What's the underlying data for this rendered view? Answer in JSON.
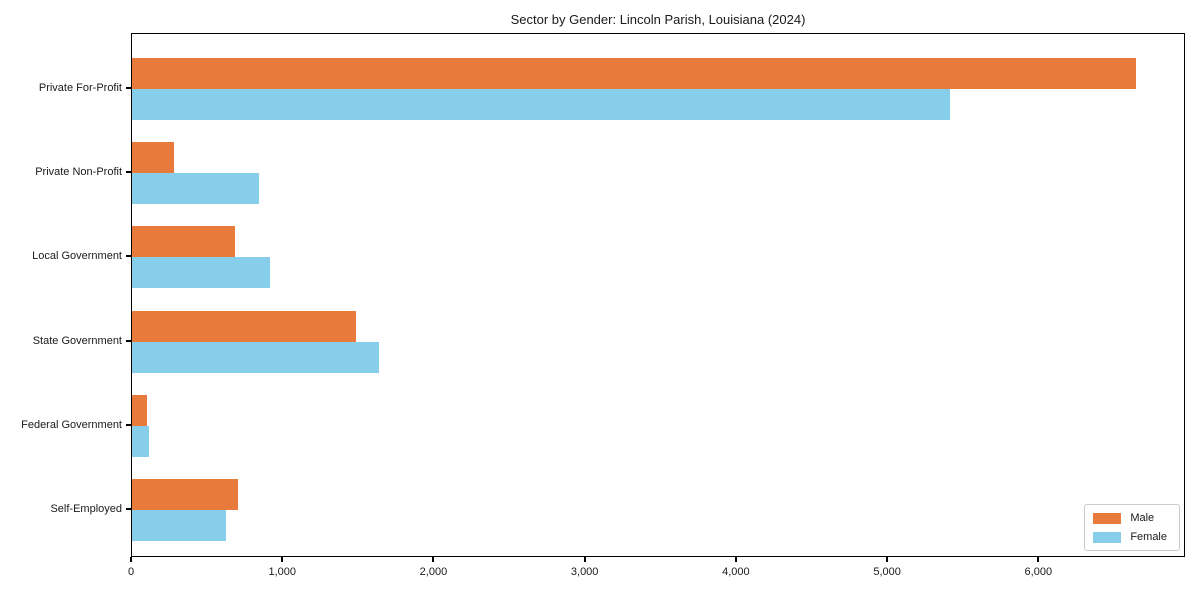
{
  "title": "Sector by Gender: Lincoln Parish, Louisiana (2024)",
  "chart_data": {
    "type": "bar",
    "orientation": "horizontal",
    "title": "Sector by Gender: Lincoln Parish, Louisiana (2024)",
    "xlabel": "",
    "ylabel": "",
    "categories": [
      "Private For-Profit",
      "Private Non-Profit",
      "Local Government",
      "State Government",
      "Federal Government",
      "Self-Employed"
    ],
    "series": [
      {
        "name": "Male",
        "color": "#E87B3C",
        "values": [
          6640,
          280,
          680,
          1480,
          100,
          700
        ]
      },
      {
        "name": "Female",
        "color": "#87CEEB",
        "values": [
          5410,
          840,
          910,
          1630,
          110,
          620
        ]
      }
    ],
    "xlim": [
      0,
      6970
    ],
    "x_ticks": [
      0,
      1000,
      2000,
      3000,
      4000,
      5000,
      6000
    ],
    "x_tick_labels": [
      "0",
      "1,000",
      "2,000",
      "3,000",
      "4,000",
      "5,000",
      "6,000"
    ],
    "grid": false,
    "legend_position": "lower right"
  },
  "colors": {
    "male": "#E87B3C",
    "female": "#87CEEB",
    "axis": "#000000",
    "text": "#1a1a1a",
    "legend_border": "#cccccc",
    "background": "#ffffff"
  }
}
